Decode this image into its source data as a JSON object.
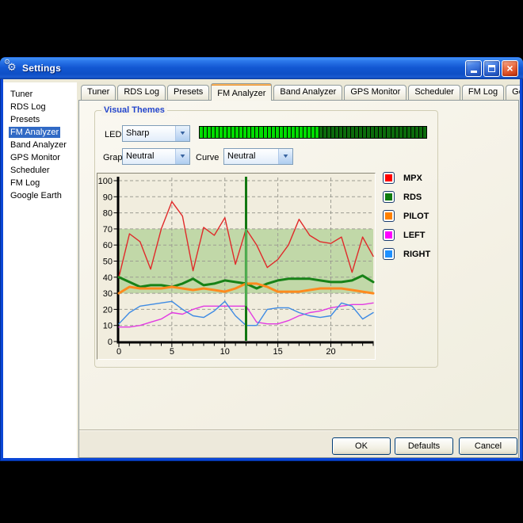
{
  "window": {
    "title": "Settings",
    "controls": {
      "minimize": "minimize",
      "maximize": "maximize",
      "close": "close"
    }
  },
  "sidebar": {
    "items": [
      {
        "label": "Tuner",
        "selected": false
      },
      {
        "label": "RDS Log",
        "selected": false
      },
      {
        "label": "Presets",
        "selected": false
      },
      {
        "label": "FM Analyzer",
        "selected": true
      },
      {
        "label": "Band Analyzer",
        "selected": false
      },
      {
        "label": "GPS Monitor",
        "selected": false
      },
      {
        "label": "Scheduler",
        "selected": false
      },
      {
        "label": "FM Log",
        "selected": false
      },
      {
        "label": "Google Earth",
        "selected": false
      }
    ]
  },
  "tabs": [
    {
      "label": "Tuner",
      "active": false
    },
    {
      "label": "RDS Log",
      "active": false
    },
    {
      "label": "Presets",
      "active": false
    },
    {
      "label": "FM Analyzer",
      "active": true
    },
    {
      "label": "Band Analyzer",
      "active": false
    },
    {
      "label": "GPS Monitor",
      "active": false
    },
    {
      "label": "Scheduler",
      "active": false
    },
    {
      "label": "FM Log",
      "active": false
    },
    {
      "label": "Google Earth",
      "active": false
    }
  ],
  "visual_themes": {
    "group_label": "Visual Themes",
    "led_label": "LED",
    "led_value": "Sharp",
    "graph_label": "Graph",
    "graph_value": "Neutral",
    "curve_label": "Curve",
    "curve_value": "Neutral",
    "led_bar": {
      "total": 57,
      "lit": 30,
      "lit_color": "#00DC00",
      "unlit_color": "#0B6B0B"
    }
  },
  "legend": [
    {
      "label": "MPX",
      "color": "#FF0000"
    },
    {
      "label": "RDS",
      "color": "#0E7C0E"
    },
    {
      "label": "PILOT",
      "color": "#FF8000"
    },
    {
      "label": "LEFT",
      "color": "#FF00FF"
    },
    {
      "label": "RIGHT",
      "color": "#1E90FF"
    }
  ],
  "chart_data": {
    "type": "line",
    "title": "",
    "xlabel": "",
    "ylabel": "",
    "xlim": [
      0,
      24
    ],
    "ylim": [
      0,
      100
    ],
    "xticks": [
      0,
      5,
      10,
      15,
      20
    ],
    "yticks": [
      0,
      10,
      20,
      30,
      40,
      50,
      60,
      70,
      80,
      90,
      100
    ],
    "grid": true,
    "background": "#F1EDDE",
    "band": {
      "from": 30,
      "to": 70,
      "color": "#C1D8A8"
    },
    "cursor": {
      "x": 12,
      "color": "#117711",
      "highlight_from": 22,
      "highlight_to": 70,
      "highlight_color": "#85DA85"
    },
    "x": [
      0,
      1,
      2,
      3,
      4,
      5,
      6,
      7,
      8,
      9,
      10,
      11,
      12,
      13,
      14,
      15,
      16,
      17,
      18,
      19,
      20,
      21,
      22,
      23,
      24
    ],
    "series": [
      {
        "name": "MPX",
        "color": "#E02A2A",
        "width": 1.4,
        "values": [
          40,
          67,
          62,
          45,
          70,
          87,
          78,
          44,
          71,
          66,
          77,
          48,
          70,
          60,
          46,
          51,
          60,
          76,
          66,
          62,
          61,
          65,
          43,
          65,
          53
        ]
      },
      {
        "name": "RDS",
        "color": "#178217",
        "width": 3,
        "values": [
          40,
          37,
          34,
          35,
          35,
          34,
          36,
          39,
          35,
          36,
          38,
          37,
          36,
          33,
          36,
          38,
          39,
          39,
          39,
          38,
          37,
          37,
          38,
          41,
          37
        ]
      },
      {
        "name": "PILOT",
        "color": "#FF8A1E",
        "width": 3,
        "values": [
          30,
          34,
          33,
          33,
          33,
          34,
          33,
          32,
          33,
          32,
          31,
          33,
          36,
          36,
          34,
          31,
          31,
          31,
          32,
          33,
          33,
          33,
          32,
          31,
          30
        ]
      },
      {
        "name": "LEFT",
        "color": "#E23BE2",
        "width": 1.4,
        "values": [
          9,
          9,
          10,
          12,
          14,
          18,
          17,
          20,
          22,
          22,
          22,
          22,
          22,
          12,
          11,
          11,
          13,
          16,
          18,
          19,
          21,
          22,
          23,
          23,
          24
        ]
      },
      {
        "name": "RIGHT",
        "color": "#3E8BE4",
        "width": 1.4,
        "values": [
          11,
          18,
          22,
          23,
          24,
          25,
          20,
          16,
          15,
          19,
          25,
          16,
          10,
          10,
          20,
          21,
          21,
          18,
          16,
          15,
          16,
          24,
          22,
          14,
          18
        ]
      }
    ]
  },
  "footer": {
    "buttons": {
      "ok": "OK",
      "defaults": "Defaults",
      "cancel": "Cancel"
    }
  }
}
